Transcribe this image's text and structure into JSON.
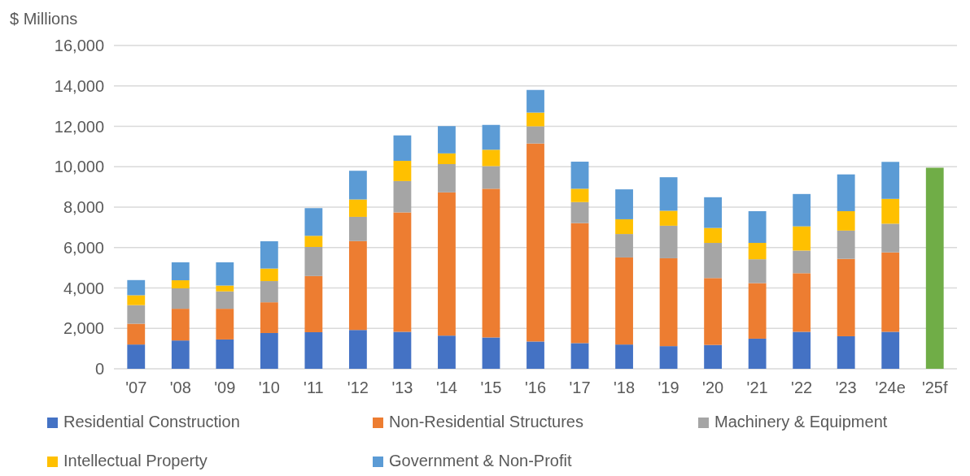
{
  "chart_data": {
    "type": "bar",
    "ylabel": "$ Millions",
    "stacked": true,
    "categories": [
      "'07",
      "'08",
      "'09",
      "'10",
      "'11",
      "'12",
      "'13",
      "'14",
      "'15",
      "'16",
      "'17",
      "'18",
      "'19",
      "'20",
      "'21",
      "'22",
      "'23",
      "'24e",
      "'25f"
    ],
    "series": [
      {
        "name": "Residential Construction",
        "color": "#4472c4",
        "values": [
          1200,
          1400,
          1450,
          1770,
          1810,
          1920,
          1830,
          1640,
          1550,
          1350,
          1270,
          1200,
          1120,
          1180,
          1490,
          1830,
          1610,
          1830,
          null
        ]
      },
      {
        "name": "Non-Residential Structures",
        "color": "#ed7d31",
        "values": [
          1030,
          1570,
          1520,
          1520,
          2780,
          4400,
          5910,
          7090,
          7360,
          9800,
          5940,
          4310,
          4350,
          3310,
          2750,
          2900,
          3830,
          3930,
          null
        ]
      },
      {
        "name": "Machinery & Equipment",
        "color": "#a5a5a5",
        "values": [
          920,
          1010,
          860,
          1050,
          1440,
          1200,
          1550,
          1400,
          1120,
          850,
          1040,
          1160,
          1610,
          1740,
          1180,
          1120,
          1400,
          1420,
          null
        ]
      },
      {
        "name": "Intellectual Property",
        "color": "#ffc000",
        "values": [
          490,
          400,
          290,
          620,
          550,
          860,
          1000,
          530,
          810,
          680,
          660,
          730,
          740,
          740,
          810,
          1200,
          960,
          1230,
          null
        ]
      },
      {
        "name": "Government & Non-Profit",
        "color": "#5b9bd5",
        "values": [
          750,
          890,
          1150,
          1350,
          1370,
          1420,
          1260,
          1350,
          1230,
          1120,
          1340,
          1480,
          1660,
          1520,
          1570,
          1600,
          1820,
          1830,
          null
        ]
      },
      {
        "color": "#70ad47",
        "values": [
          null,
          null,
          null,
          null,
          null,
          null,
          null,
          null,
          null,
          null,
          null,
          null,
          null,
          null,
          null,
          null,
          null,
          null,
          9950
        ]
      }
    ],
    "ylim": [
      0,
      16000
    ],
    "yticks": [
      {
        "value": 0,
        "label": "0"
      },
      {
        "value": 2000,
        "label": "2,000"
      },
      {
        "value": 4000,
        "label": "4,000"
      },
      {
        "value": 6000,
        "label": "6,000"
      },
      {
        "value": 8000,
        "label": "8,000"
      },
      {
        "value": 10000,
        "label": "10,000"
      },
      {
        "value": 12000,
        "label": "12,000"
      },
      {
        "value": 14000,
        "label": "14,000"
      },
      {
        "value": 16000,
        "label": "16,000"
      }
    ],
    "grid": "y",
    "legend": "bottom"
  }
}
